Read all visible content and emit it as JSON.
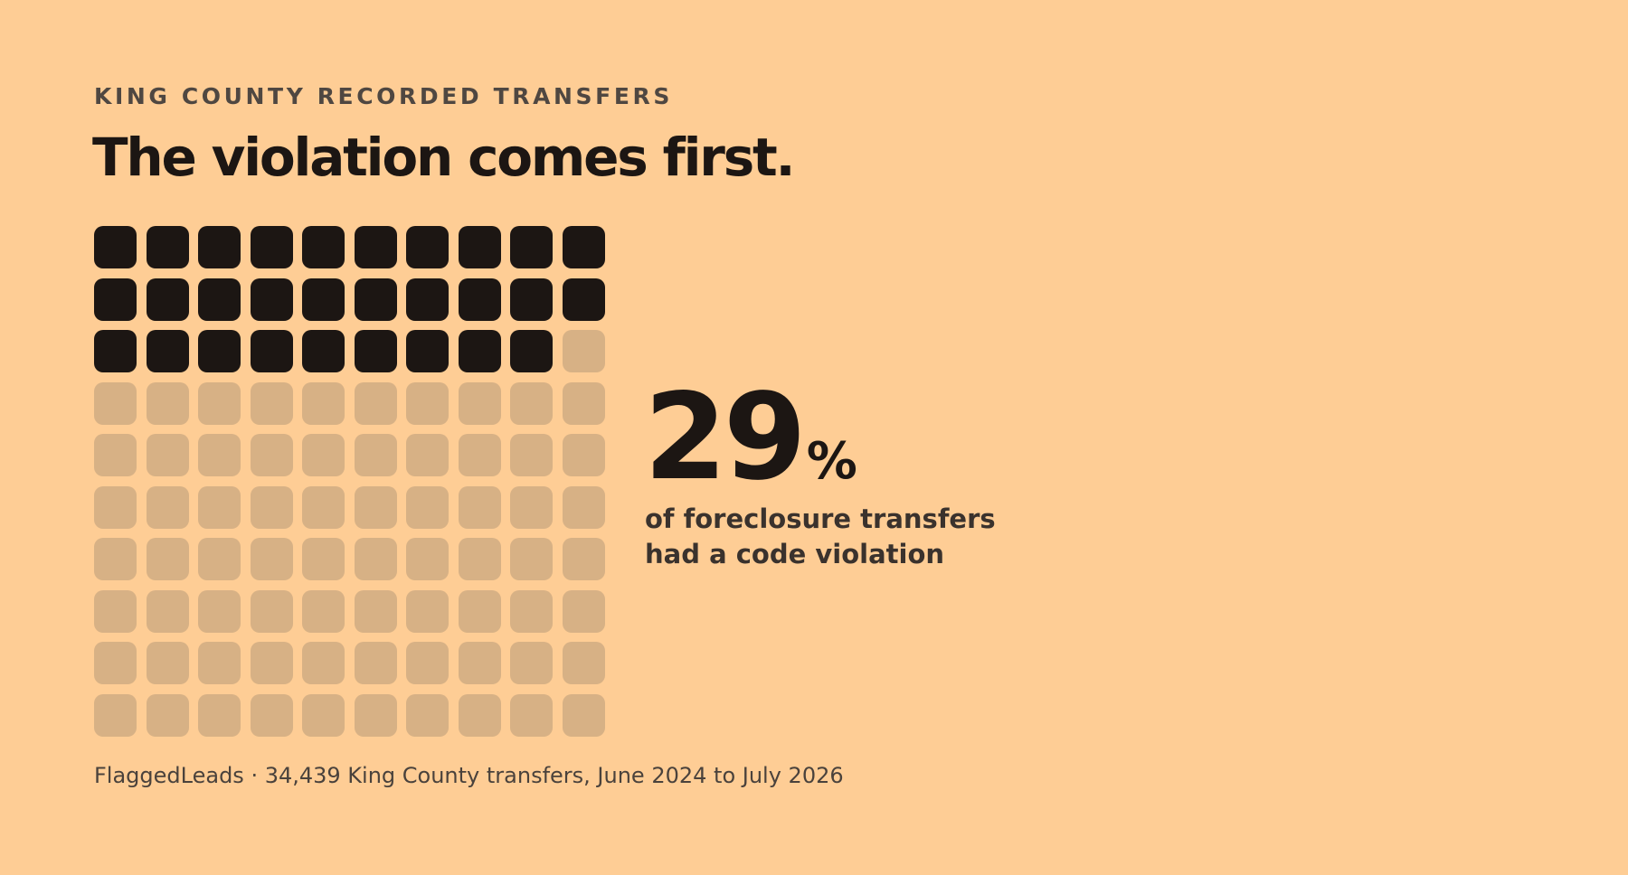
{
  "eyebrow": "KING COUNTY RECORDED TRANSFERS",
  "headline": "The violation comes first.",
  "stat": {
    "value": "29",
    "unit": "%",
    "label_line1": "of foreclosure transfers",
    "label_line2": "had a code violation"
  },
  "footer": "FlaggedLeads · 34,439 King County transfers, June 2024 to July 2026",
  "colors": {
    "background": "#FECD95",
    "filled": "#1C1613",
    "empty": "#D7B185",
    "text": "#1C1613",
    "muted_text": "#4F4741"
  },
  "chart_data": {
    "type": "waffle",
    "rows": 10,
    "columns": 10,
    "total_units": 100,
    "filled_units": 29,
    "value_percent": 29,
    "fill_order": "row-major, left-to-right, top-to-bottom"
  }
}
